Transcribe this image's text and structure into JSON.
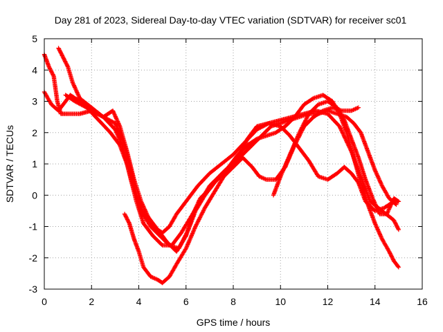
{
  "chart_data": {
    "type": "scatter",
    "title": "Day 281 of 2023, Sidereal Day-to-day VTEC variation (SDTVAR) for receiver sc01",
    "xlabel": "GPS time / hours",
    "ylabel": "SDTVAR / TECUs",
    "xlim": [
      0,
      16
    ],
    "ylim": [
      -3,
      5
    ],
    "xticks": [
      "0",
      "2",
      "4",
      "6",
      "8",
      "10",
      "12",
      "14",
      "16"
    ],
    "yticks": [
      "-3",
      "-2",
      "-1",
      "0",
      "1",
      "2",
      "3",
      "4",
      "5"
    ],
    "grid": true,
    "marker": "plus",
    "color": "#ff0000",
    "series": [
      {
        "points": [
          [
            0.0,
            4.5
          ],
          [
            0.2,
            4.1
          ],
          [
            0.4,
            3.8
          ],
          [
            0.55,
            3.0
          ],
          [
            0.7,
            2.6
          ],
          [
            1.0,
            2.6
          ],
          [
            1.5,
            2.6
          ],
          [
            2.0,
            2.7
          ],
          [
            2.5,
            2.5
          ],
          [
            3.0,
            2.3
          ],
          [
            3.3,
            1.8
          ],
          [
            3.6,
            1.0
          ],
          [
            3.9,
            0.0
          ],
          [
            4.2,
            -0.6
          ],
          [
            4.6,
            -1.0
          ],
          [
            5.0,
            -1.2
          ],
          [
            5.3,
            -1.0
          ],
          [
            5.6,
            -0.6
          ],
          [
            6.0,
            -0.2
          ],
          [
            6.5,
            0.3
          ],
          [
            7.0,
            0.7
          ],
          [
            7.5,
            1.0
          ],
          [
            8.0,
            1.3
          ],
          [
            8.5,
            1.7
          ],
          [
            9.0,
            2.1
          ],
          [
            9.5,
            2.3
          ],
          [
            10.0,
            2.4
          ],
          [
            10.5,
            2.5
          ],
          [
            11.0,
            2.6
          ],
          [
            11.5,
            2.7
          ],
          [
            12.0,
            2.6
          ],
          [
            12.5,
            2.2
          ],
          [
            13.0,
            1.4
          ],
          [
            13.4,
            0.6
          ],
          [
            13.8,
            -0.2
          ],
          [
            14.3,
            -0.5
          ],
          [
            14.8,
            -0.8
          ],
          [
            15.0,
            -1.1
          ]
        ]
      },
      {
        "points": [
          [
            0.6,
            4.7
          ],
          [
            0.8,
            4.4
          ],
          [
            1.0,
            4.1
          ],
          [
            1.2,
            3.6
          ],
          [
            1.5,
            3.1
          ],
          [
            2.0,
            2.8
          ],
          [
            2.5,
            2.5
          ],
          [
            3.0,
            2.1
          ],
          [
            3.3,
            1.6
          ],
          [
            3.6,
            0.7
          ],
          [
            3.9,
            -0.2
          ],
          [
            4.2,
            -0.9
          ],
          [
            4.6,
            -1.3
          ],
          [
            5.0,
            -1.6
          ],
          [
            5.4,
            -1.6
          ],
          [
            5.8,
            -1.2
          ],
          [
            6.2,
            -0.7
          ],
          [
            6.6,
            -0.2
          ],
          [
            7.0,
            0.3
          ],
          [
            7.4,
            0.6
          ],
          [
            7.8,
            0.9
          ],
          [
            8.2,
            1.2
          ],
          [
            8.6,
            1.8
          ],
          [
            9.0,
            2.2
          ],
          [
            9.5,
            2.3
          ],
          [
            10.0,
            2.2
          ],
          [
            10.4,
            1.9
          ],
          [
            10.8,
            1.5
          ],
          [
            11.2,
            1.1
          ],
          [
            11.6,
            0.6
          ],
          [
            12.0,
            0.5
          ],
          [
            12.4,
            0.7
          ],
          [
            12.7,
            0.9
          ],
          [
            13.0,
            0.7
          ],
          [
            13.3,
            0.4
          ],
          [
            13.6,
            -0.2
          ],
          [
            14.0,
            -0.5
          ],
          [
            14.4,
            -0.4
          ],
          [
            14.8,
            -0.2
          ],
          [
            15.0,
            -0.2
          ]
        ]
      },
      {
        "points": [
          [
            0.0,
            3.3
          ],
          [
            0.3,
            2.9
          ],
          [
            0.6,
            2.7
          ],
          [
            0.8,
            2.9
          ],
          [
            1.1,
            3.2
          ],
          [
            1.5,
            3.0
          ],
          [
            2.0,
            2.7
          ],
          [
            2.5,
            2.5
          ],
          [
            2.9,
            2.7
          ],
          [
            3.2,
            2.2
          ],
          [
            3.5,
            1.4
          ],
          [
            3.8,
            0.5
          ],
          [
            4.1,
            -0.2
          ],
          [
            4.4,
            -0.7
          ],
          [
            4.8,
            -1.1
          ],
          [
            5.2,
            -1.5
          ],
          [
            5.6,
            -1.8
          ],
          [
            6.0,
            -1.3
          ],
          [
            6.3,
            -0.6
          ],
          [
            6.6,
            -0.1
          ],
          [
            7.0,
            0.2
          ],
          [
            7.4,
            0.6
          ],
          [
            7.8,
            0.9
          ],
          [
            8.2,
            1.3
          ],
          [
            8.6,
            1.6
          ],
          [
            9.0,
            1.8
          ],
          [
            9.4,
            1.9
          ],
          [
            9.8,
            2.0
          ],
          [
            10.2,
            2.2
          ],
          [
            10.6,
            2.5
          ],
          [
            11.0,
            2.9
          ],
          [
            11.4,
            3.1
          ],
          [
            11.8,
            3.2
          ],
          [
            12.2,
            3.0
          ],
          [
            12.5,
            2.6
          ],
          [
            12.8,
            2.0
          ],
          [
            13.1,
            1.2
          ],
          [
            13.4,
            0.4
          ],
          [
            13.7,
            -0.3
          ],
          [
            14.0,
            -0.9
          ],
          [
            14.3,
            -1.4
          ],
          [
            14.6,
            -1.8
          ],
          [
            14.8,
            -2.1
          ],
          [
            15.0,
            -2.3
          ]
        ]
      },
      {
        "points": [
          [
            0.9,
            3.2
          ],
          [
            1.3,
            3.0
          ],
          [
            1.8,
            2.8
          ],
          [
            2.3,
            2.4
          ],
          [
            2.8,
            2.0
          ],
          [
            3.2,
            1.6
          ],
          [
            3.5,
            1.0
          ],
          [
            3.8,
            0.2
          ],
          [
            4.1,
            -0.5
          ],
          [
            4.5,
            -1.0
          ],
          [
            4.9,
            -1.3
          ],
          [
            5.3,
            -1.6
          ],
          [
            5.7,
            -1.7
          ],
          [
            6.1,
            -1.1
          ],
          [
            6.4,
            -0.5
          ],
          [
            6.8,
            0.0
          ],
          [
            7.2,
            0.4
          ],
          [
            7.6,
            0.7
          ],
          [
            8.0,
            1.0
          ],
          [
            8.4,
            1.3
          ],
          [
            8.8,
            1.6
          ],
          [
            9.2,
            1.9
          ],
          [
            9.6,
            2.2
          ],
          [
            10.0,
            2.3
          ],
          [
            10.4,
            2.4
          ],
          [
            10.8,
            2.5
          ],
          [
            11.2,
            2.6
          ],
          [
            11.6,
            2.6
          ],
          [
            12.0,
            2.7
          ],
          [
            12.4,
            2.6
          ],
          [
            12.8,
            2.5
          ],
          [
            13.1,
            2.3
          ],
          [
            13.4,
            2.0
          ],
          [
            13.7,
            1.4
          ],
          [
            14.0,
            0.8
          ],
          [
            14.3,
            0.3
          ],
          [
            14.6,
            -0.1
          ],
          [
            14.9,
            -0.3
          ]
        ]
      },
      {
        "points": [
          [
            3.4,
            -0.6
          ],
          [
            3.6,
            -0.9
          ],
          [
            3.8,
            -1.4
          ],
          [
            4.0,
            -1.8
          ],
          [
            4.2,
            -2.3
          ],
          [
            4.5,
            -2.6
          ],
          [
            4.8,
            -2.7
          ],
          [
            5.0,
            -2.8
          ],
          [
            5.3,
            -2.6
          ],
          [
            5.6,
            -2.2
          ],
          [
            6.0,
            -1.7
          ],
          [
            6.4,
            -1.0
          ],
          [
            6.8,
            -0.4
          ],
          [
            7.2,
            0.1
          ],
          [
            7.6,
            0.6
          ],
          [
            8.0,
            0.9
          ],
          [
            8.4,
            1.2
          ],
          [
            8.8,
            0.9
          ],
          [
            9.1,
            0.6
          ],
          [
            9.4,
            0.5
          ],
          [
            9.8,
            0.5
          ],
          [
            10.2,
            0.9
          ],
          [
            10.6,
            1.6
          ],
          [
            11.0,
            2.2
          ],
          [
            11.4,
            2.5
          ],
          [
            11.8,
            2.7
          ],
          [
            12.2,
            2.8
          ],
          [
            12.6,
            2.7
          ],
          [
            13.0,
            2.7
          ],
          [
            13.3,
            2.8
          ]
        ]
      },
      {
        "points": [
          [
            9.7,
            0.0
          ],
          [
            10.0,
            0.6
          ],
          [
            10.4,
            1.3
          ],
          [
            10.8,
            2.0
          ],
          [
            11.2,
            2.6
          ],
          [
            11.6,
            2.9
          ],
          [
            12.0,
            3.0
          ],
          [
            12.4,
            2.8
          ],
          [
            12.7,
            2.4
          ],
          [
            13.0,
            1.8
          ],
          [
            13.3,
            1.2
          ],
          [
            13.6,
            0.5
          ],
          [
            13.9,
            -0.1
          ],
          [
            14.2,
            -0.6
          ],
          [
            14.5,
            -0.6
          ],
          [
            14.8,
            -0.1
          ],
          [
            15.0,
            -0.2
          ]
        ]
      }
    ]
  }
}
